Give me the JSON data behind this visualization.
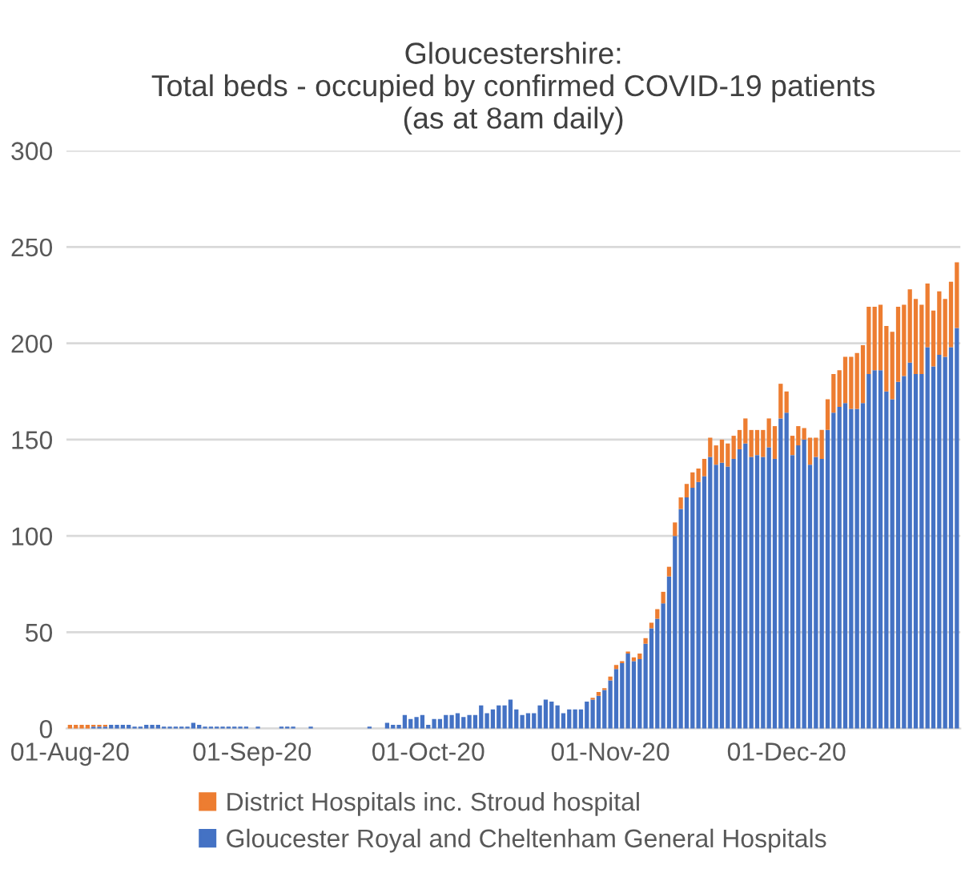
{
  "chart_data": {
    "type": "bar",
    "stacked": true,
    "title": "Gloucestershire:\nTotal beds - occupied by confirmed COVID-19 patients\n(as at 8am daily)",
    "categories": [
      "01-Aug-20",
      null,
      null,
      null,
      null,
      null,
      null,
      null,
      null,
      null,
      null,
      null,
      null,
      null,
      null,
      null,
      null,
      null,
      null,
      null,
      null,
      null,
      null,
      null,
      null,
      null,
      null,
      null,
      null,
      null,
      null,
      "01-Sep-20",
      null,
      null,
      null,
      null,
      null,
      null,
      null,
      null,
      null,
      null,
      null,
      null,
      null,
      null,
      null,
      null,
      null,
      null,
      null,
      null,
      null,
      null,
      null,
      null,
      null,
      null,
      null,
      null,
      null,
      "01-Oct-20",
      null,
      null,
      null,
      null,
      null,
      null,
      null,
      null,
      null,
      null,
      null,
      null,
      null,
      null,
      null,
      null,
      null,
      null,
      null,
      null,
      null,
      null,
      null,
      null,
      null,
      null,
      null,
      null,
      null,
      null,
      "01-Nov-20",
      null,
      null,
      null,
      null,
      null,
      null,
      null,
      null,
      null,
      null,
      null,
      null,
      null,
      null,
      null,
      null,
      null,
      null,
      null,
      null,
      null,
      null,
      null,
      null,
      null,
      null,
      null,
      null,
      null,
      "01-Dec-20",
      null,
      null,
      null,
      null,
      null,
      null,
      null,
      null,
      null,
      null,
      null,
      null,
      null,
      null,
      null,
      null,
      null,
      null,
      null,
      null,
      null,
      null,
      null,
      null,
      null,
      null,
      null,
      null,
      null
    ],
    "series": [
      {
        "name": "Gloucester Royal and Cheltenham General Hospitals",
        "color": "#4472c4",
        "values": [
          0,
          0,
          0,
          0,
          1,
          1,
          1,
          2,
          2,
          2,
          2,
          1,
          1,
          2,
          2,
          2,
          1,
          1,
          1,
          1,
          1,
          3,
          2,
          1,
          1,
          1,
          1,
          1,
          1,
          1,
          1,
          0,
          1,
          0,
          0,
          0,
          1,
          1,
          1,
          0,
          0,
          1,
          0,
          0,
          0,
          0,
          0,
          0,
          0,
          0,
          0,
          1,
          0,
          0,
          3,
          2,
          2,
          7,
          5,
          6,
          7,
          2,
          5,
          5,
          7,
          7,
          8,
          6,
          7,
          7,
          12,
          8,
          10,
          12,
          12,
          15,
          10,
          7,
          8,
          8,
          12,
          15,
          14,
          12,
          8,
          10,
          10,
          10,
          14,
          15,
          17,
          20,
          25,
          31,
          34,
          39,
          35,
          36,
          44,
          52,
          57,
          65,
          79,
          100,
          114,
          120,
          125,
          128,
          131,
          141,
          137,
          138,
          136,
          140,
          145,
          148,
          141,
          142,
          141,
          146,
          140,
          161,
          164,
          142,
          147,
          150,
          137,
          141,
          140,
          155,
          164,
          167,
          169,
          166,
          166,
          169,
          184,
          186,
          186,
          175,
          171,
          180,
          183,
          190,
          184,
          184,
          198,
          188,
          194,
          193,
          198,
          208
        ]
      },
      {
        "name": "District Hospitals inc. Stroud hospital",
        "color": "#ed7d31",
        "values": [
          2,
          2,
          2,
          2,
          1,
          1,
          1,
          0,
          0,
          0,
          0,
          0,
          0,
          0,
          0,
          0,
          0,
          0,
          0,
          0,
          0,
          0,
          0,
          0,
          0,
          0,
          0,
          0,
          0,
          0,
          0,
          0,
          0,
          0,
          0,
          0,
          0,
          0,
          0,
          0,
          0,
          0,
          0,
          0,
          0,
          0,
          0,
          0,
          0,
          0,
          0,
          0,
          0,
          0,
          0,
          0,
          0,
          0,
          0,
          0,
          0,
          0,
          0,
          0,
          0,
          0,
          0,
          0,
          0,
          0,
          0,
          0,
          0,
          0,
          0,
          0,
          0,
          0,
          0,
          0,
          0,
          0,
          0,
          0,
          0,
          0,
          0,
          0,
          0,
          1,
          2,
          1,
          2,
          2,
          1,
          1,
          2,
          3,
          3,
          3,
          5,
          6,
          5,
          7,
          6,
          7,
          8,
          7,
          9,
          10,
          10,
          12,
          12,
          12,
          10,
          13,
          14,
          13,
          14,
          15,
          17,
          18,
          11,
          10,
          10,
          6,
          14,
          10,
          15,
          16,
          20,
          19,
          24,
          27,
          29,
          30,
          35,
          33,
          34,
          34,
          35,
          39,
          37,
          38,
          39,
          36,
          33,
          29,
          33,
          30,
          34,
          34
        ]
      }
    ],
    "ylim": [
      0,
      300
    ],
    "yticks": [
      0,
      50,
      100,
      150,
      200,
      250,
      300
    ],
    "grid": "y",
    "legend": "bottom"
  }
}
